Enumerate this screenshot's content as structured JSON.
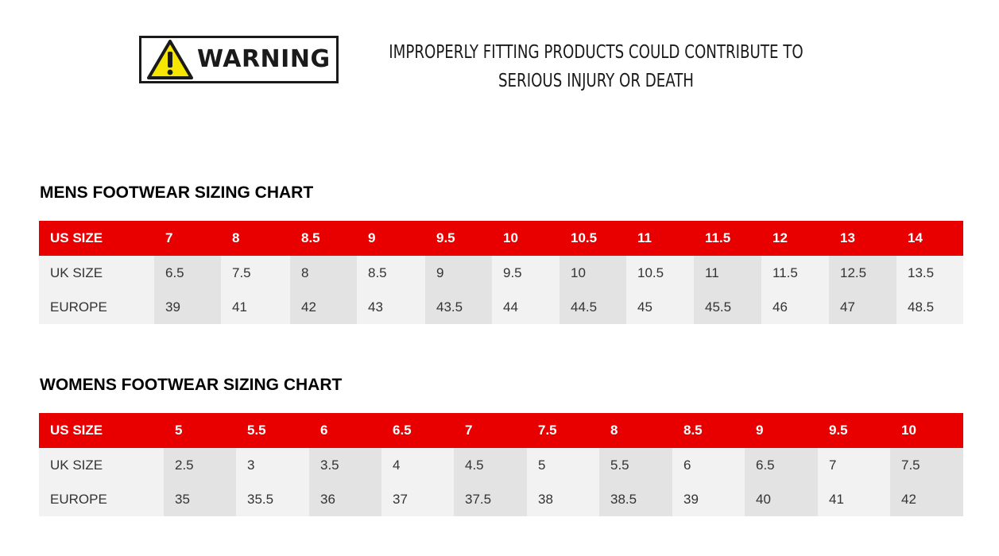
{
  "warning": {
    "label": "WARNING",
    "message_line1": "IMPROPERLY FITTING PRODUCTS COULD CONTRIBUTE TO",
    "message_line2": "SERIOUS INJURY OR DEATH",
    "colors": {
      "triangle": "#f6e600",
      "border": "#1a1a1a"
    }
  },
  "mens": {
    "title": "MENS FOOTWEAR SIZING CHART",
    "header": [
      "US SIZE",
      "7",
      "8",
      "8.5",
      "9",
      "9.5",
      "10",
      "10.5",
      "11",
      "11.5",
      "12",
      "13",
      "14"
    ],
    "rows": [
      [
        "UK SIZE",
        "6.5",
        "7.5",
        "8",
        "8.5",
        "9",
        "9.5",
        "10",
        "10.5",
        "11",
        "11.5",
        "12.5",
        "13.5"
      ],
      [
        "EUROPE",
        "39",
        "41",
        "42",
        "43",
        "43.5",
        "44",
        "44.5",
        "45",
        "45.5",
        "46",
        "47",
        "48.5"
      ]
    ]
  },
  "womens": {
    "title": "WOMENS FOOTWEAR SIZING CHART",
    "header": [
      "US SIZE",
      "5",
      "5.5",
      "6",
      "6.5",
      "7",
      "7.5",
      "8",
      "8.5",
      "9",
      "9.5",
      "10"
    ],
    "rows": [
      [
        "UK SIZE",
        "2.5",
        "3",
        "3.5",
        "4",
        "4.5",
        "5",
        "5.5",
        "6",
        "6.5",
        "7",
        "7.5"
      ],
      [
        "EUROPE",
        "35",
        "35.5",
        "36",
        "37",
        "37.5",
        "38",
        "38.5",
        "39",
        "40",
        "41",
        "42"
      ]
    ]
  },
  "colors": {
    "header_red": "#e80000",
    "row_light": "#f2f2f2",
    "row_alt": "#e3e3e3"
  }
}
